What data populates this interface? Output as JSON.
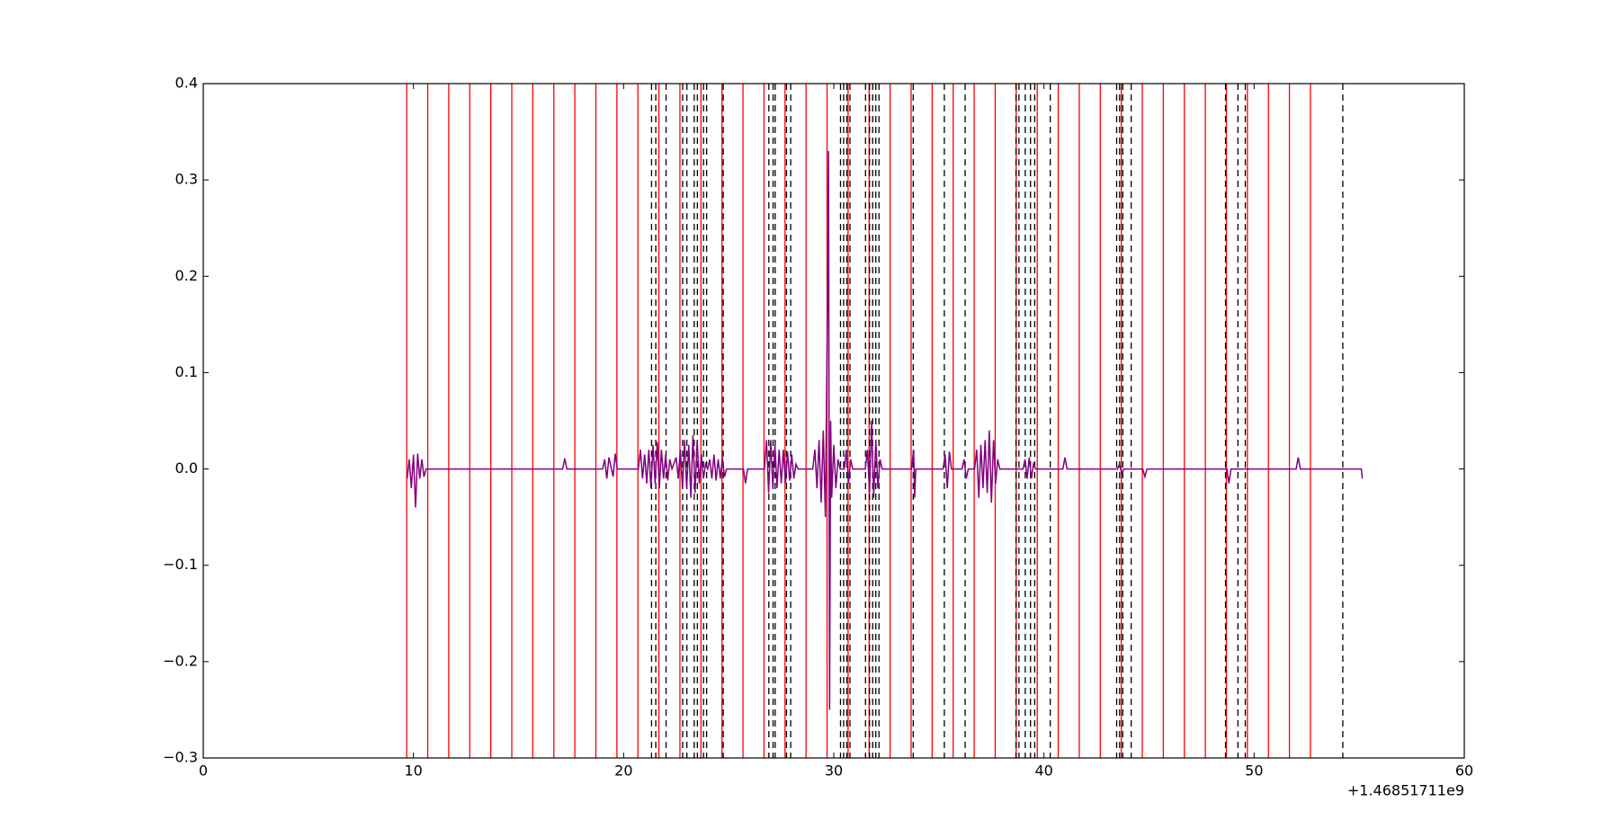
{
  "chart_data": {
    "type": "line",
    "x_offset_label": "+1.46851711e9",
    "xlim": [
      0,
      60
    ],
    "xticks": [
      0,
      10,
      20,
      30,
      40,
      50,
      60
    ],
    "ylim": [
      -0.3,
      0.4
    ],
    "yticks": [
      {
        "value": -0.3,
        "label": "−0.3"
      },
      {
        "value": -0.2,
        "label": "−0.2"
      },
      {
        "value": -0.1,
        "label": "−0.1"
      },
      {
        "value": 0,
        "label": "0.0"
      },
      0.1,
      0.2,
      0.3,
      0.4
    ],
    "vlines": [
      {
        "color": "#ff0000",
        "style": "solid",
        "x": [
          9.68,
          10.68,
          11.68,
          12.68,
          13.68,
          14.68,
          15.68,
          16.68,
          17.68,
          18.68,
          19.68,
          20.68,
          21.68,
          22.68,
          23.68,
          24.68,
          25.68,
          26.68,
          27.68,
          28.68,
          29.68,
          30.68,
          31.68,
          32.68,
          33.68,
          34.68,
          35.68,
          36.68,
          37.68,
          38.68,
          39.68,
          40.68,
          41.68,
          42.68,
          43.68,
          44.68,
          45.68,
          46.68,
          47.68,
          48.68,
          49.68,
          50.68,
          51.68,
          52.68
        ]
      },
      {
        "color": "#000000",
        "style": "dashed",
        "x": [
          21.33,
          21.53,
          22.02,
          22.81,
          23.01,
          23.36,
          23.51,
          23.8,
          23.95,
          24.74,
          26.91,
          27.11,
          27.21,
          27.75,
          27.95,
          30.32,
          30.47,
          30.62,
          30.77,
          31.51,
          31.7,
          31.85,
          32.0,
          32.15,
          33.78,
          35.26,
          36.25,
          38.67,
          38.81,
          39.11,
          39.36,
          39.56,
          40.3,
          43.46,
          43.6,
          43.75,
          44.15,
          48.64,
          49.23,
          49.58,
          54.22
        ]
      }
    ],
    "series": [
      {
        "color": "#800080",
        "x": [
          9.7,
          9.8,
          9.9,
          10.0,
          10.1,
          10.2,
          10.3,
          10.4,
          10.5,
          10.6,
          17.1,
          17.2,
          17.3,
          19.0,
          19.1,
          19.2,
          19.3,
          19.5,
          19.6,
          19.7,
          20.7,
          20.8,
          20.9,
          21.0,
          21.1,
          21.2,
          21.3,
          21.4,
          21.5,
          21.6,
          21.7,
          21.8,
          21.9,
          22.0,
          22.1,
          22.2,
          22.3,
          22.5,
          22.6,
          22.7,
          22.8,
          22.9,
          23.0,
          23.1,
          23.2,
          23.3,
          23.4,
          23.5,
          23.6,
          23.7,
          23.8,
          23.9,
          24.0,
          24.1,
          24.2,
          24.3,
          24.4,
          24.5,
          24.6,
          24.7,
          24.8,
          24.9,
          25.7,
          25.8,
          25.9,
          26.7,
          26.8,
          26.9,
          27.0,
          27.1,
          27.2,
          27.3,
          27.4,
          27.5,
          27.6,
          27.7,
          27.8,
          27.9,
          28.0,
          28.1,
          28.2,
          28.3,
          29.0,
          29.1,
          29.2,
          29.3,
          29.4,
          29.5,
          29.6,
          29.7,
          29.75,
          29.8,
          29.85,
          29.9,
          30.0,
          30.1,
          30.2,
          30.3,
          30.5,
          30.6,
          30.7,
          30.8,
          30.9,
          31.5,
          31.6,
          31.7,
          31.8,
          31.9,
          32.0,
          32.1,
          32.2,
          32.3,
          33.7,
          33.8,
          33.85,
          33.9,
          35.2,
          35.3,
          35.4,
          35.5,
          35.6,
          36.1,
          36.2,
          36.3,
          36.4,
          36.7,
          36.8,
          36.9,
          37.0,
          37.1,
          37.2,
          37.3,
          37.4,
          37.5,
          37.6,
          37.7,
          37.8,
          37.9,
          39.0,
          39.1,
          39.2,
          39.3,
          39.4,
          39.5,
          39.6,
          40.9,
          41.0,
          41.1,
          43.5,
          43.6,
          43.7,
          43.8,
          44.7,
          44.8,
          44.9,
          48.7,
          48.8,
          48.9,
          52.0,
          52.1,
          52.2,
          55.1,
          55.15
        ],
        "values": [
          -0.01,
          0.01,
          -0.02,
          0.015,
          -0.04,
          0.016,
          -0.01,
          0.01,
          -0.008,
          0,
          0,
          0.011,
          0,
          0,
          0.01,
          -0.01,
          0.012,
          -0.008,
          0.016,
          0,
          0,
          0.02,
          -0.01,
          0.015,
          -0.015,
          0.02,
          -0.02,
          0.025,
          -0.015,
          0.028,
          -0.02,
          0.02,
          -0.01,
          0.015,
          -0.012,
          0.01,
          0,
          0.012,
          -0.01,
          0.02,
          -0.02,
          0.03,
          -0.02,
          0.025,
          -0.03,
          0.035,
          -0.025,
          0.03,
          -0.015,
          0.015,
          -0.01,
          0.005,
          0,
          0.01,
          -0.01,
          0.015,
          -0.012,
          0.01,
          -0.01,
          0.012,
          -0.008,
          0,
          0,
          -0.015,
          0,
          0,
          0.03,
          -0.025,
          0.03,
          -0.02,
          0.025,
          -0.02,
          0.02,
          -0.015,
          0.02,
          -0.015,
          0.018,
          -0.012,
          0.015,
          -0.01,
          0.005,
          0,
          0,
          0.02,
          -0.02,
          0.03,
          -0.035,
          0.04,
          -0.05,
          0.17,
          0.33,
          -0.25,
          0.05,
          -0.03,
          0.025,
          -0.02,
          0.01,
          0,
          0,
          0.02,
          -0.015,
          0.01,
          0,
          0,
          0.02,
          -0.025,
          0.05,
          -0.03,
          0.03,
          -0.02,
          0.01,
          0,
          0,
          0.02,
          -0.03,
          0,
          0,
          0.015,
          -0.02,
          0.018,
          0,
          0,
          0.01,
          -0.01,
          0,
          0,
          0.02,
          -0.03,
          0.025,
          -0.02,
          0.03,
          -0.025,
          0.04,
          -0.035,
          0.03,
          -0.015,
          0.01,
          0,
          0,
          0.01,
          -0.01,
          0.012,
          -0.01,
          0.005,
          0,
          0,
          0.012,
          0,
          0,
          0.005,
          -0.005,
          0,
          0,
          -0.008,
          0,
          0,
          -0.015,
          0,
          0,
          0.012,
          0,
          0,
          -0.01
        ]
      }
    ]
  }
}
